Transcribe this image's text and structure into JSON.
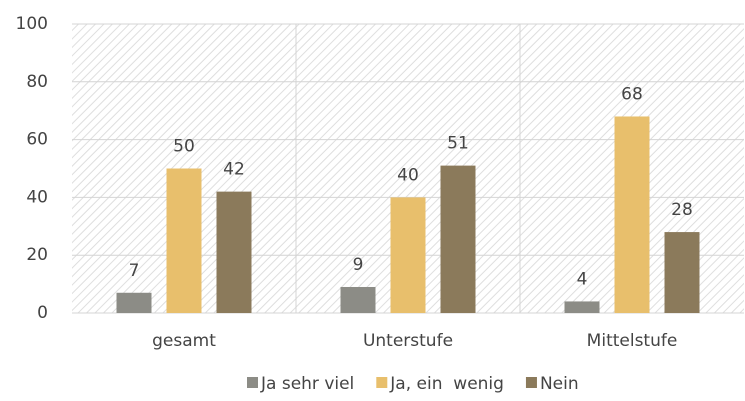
{
  "chart_data": {
    "type": "bar",
    "categories": [
      "gesamt",
      "Unterstufe",
      "Mittelstufe"
    ],
    "series": [
      {
        "name": "Ja sehr viel",
        "color": "#8c8c86",
        "values": [
          7,
          9,
          4
        ]
      },
      {
        "name": "Ja, ein  wenig",
        "color": "#e8bf6c",
        "values": [
          50,
          40,
          68
        ]
      },
      {
        "name": "Nein",
        "color": "#8b7a5b",
        "values": [
          42,
          51,
          28
        ]
      }
    ],
    "ylim": [
      0,
      100
    ],
    "yticks": [
      0,
      20,
      40,
      60,
      80,
      100
    ],
    "grid": true,
    "legend": "bottom"
  }
}
